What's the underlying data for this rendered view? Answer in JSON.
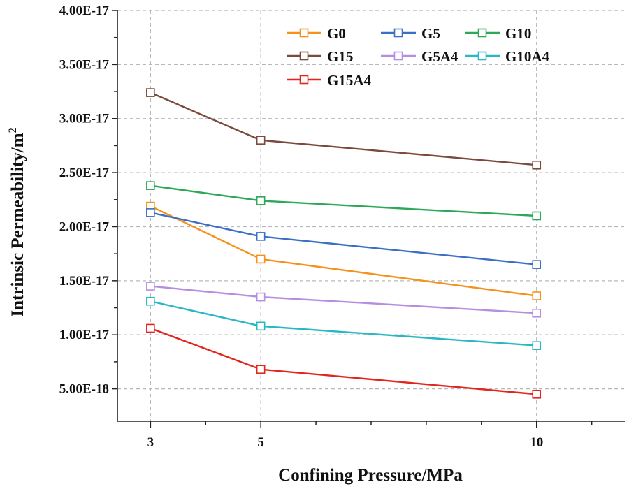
{
  "chart_data": {
    "type": "line",
    "title": "",
    "xlabel": "Confining Pressure/MPa",
    "ylabel_text": "Intrinsic Permeability/m",
    "ylabel_superscript": "2",
    "x": [
      3,
      5,
      10
    ],
    "xlim": [
      2.4,
      11.6
    ],
    "ylim": [
      2e-18,
      4e-17
    ],
    "x_ticks": [
      3,
      5,
      10
    ],
    "x_minor_ticks": [
      4,
      6,
      7,
      8,
      9,
      11
    ],
    "x_tick_labels": [
      "3",
      "5",
      "10"
    ],
    "y_ticks": [
      5e-18,
      1e-17,
      1.5e-17,
      2e-17,
      2.5e-17,
      3e-17,
      3.5e-17,
      4e-17
    ],
    "y_tick_labels": [
      "5.00E-18",
      "1.00E-17",
      "1.50E-17",
      "2.00E-17",
      "2.50E-17",
      "3.00E-17",
      "3.50E-17",
      "4.00E-17"
    ],
    "grid": true,
    "legend_position": "top-right",
    "series": [
      {
        "name": "G0",
        "color": "#f5921e",
        "values": [
          2.19e-17,
          1.7e-17,
          1.36e-17
        ]
      },
      {
        "name": "G5",
        "color": "#3b6fc6",
        "values": [
          2.13e-17,
          1.91e-17,
          1.65e-17
        ]
      },
      {
        "name": "G10",
        "color": "#2ca858",
        "values": [
          2.38e-17,
          2.24e-17,
          2.1e-17
        ]
      },
      {
        "name": "G15",
        "color": "#7b4a3c",
        "values": [
          3.24e-17,
          2.8e-17,
          2.57e-17
        ]
      },
      {
        "name": "G5A4",
        "color": "#b58ee0",
        "values": [
          1.45e-17,
          1.35e-17,
          1.2e-17
        ]
      },
      {
        "name": "G10A4",
        "color": "#2ab7c4",
        "values": [
          1.31e-17,
          1.08e-17,
          9e-18
        ]
      },
      {
        "name": "G15A4",
        "color": "#e2261e",
        "values": [
          1.06e-17,
          6.8e-18,
          4.5e-18
        ]
      }
    ]
  }
}
